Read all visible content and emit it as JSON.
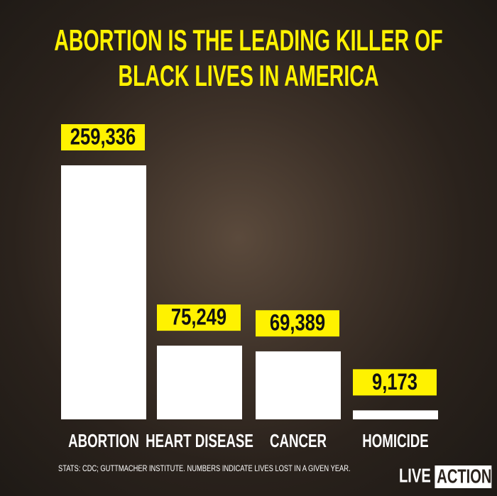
{
  "chart_data": {
    "type": "bar",
    "title": "ABORTION IS THE LEADING KILLER OF BLACK LIVES IN AMERICA",
    "categories": [
      "ABORTION",
      "HEART DISEASE",
      "CANCER",
      "HOMICIDE"
    ],
    "values": [
      259336,
      75249,
      69389,
      9173
    ],
    "value_labels": [
      "259,336",
      "75,249",
      "69,389",
      "9,173"
    ],
    "color": "#ffffff",
    "label_color": "#fff200",
    "footnote": "STATS: CDC; GUTTMACHER INSTITUTE. NUMBERS INDICATE LIVES LOST IN A GIVEN YEAR.",
    "logo": [
      "LIVE",
      "ACTION"
    ]
  }
}
